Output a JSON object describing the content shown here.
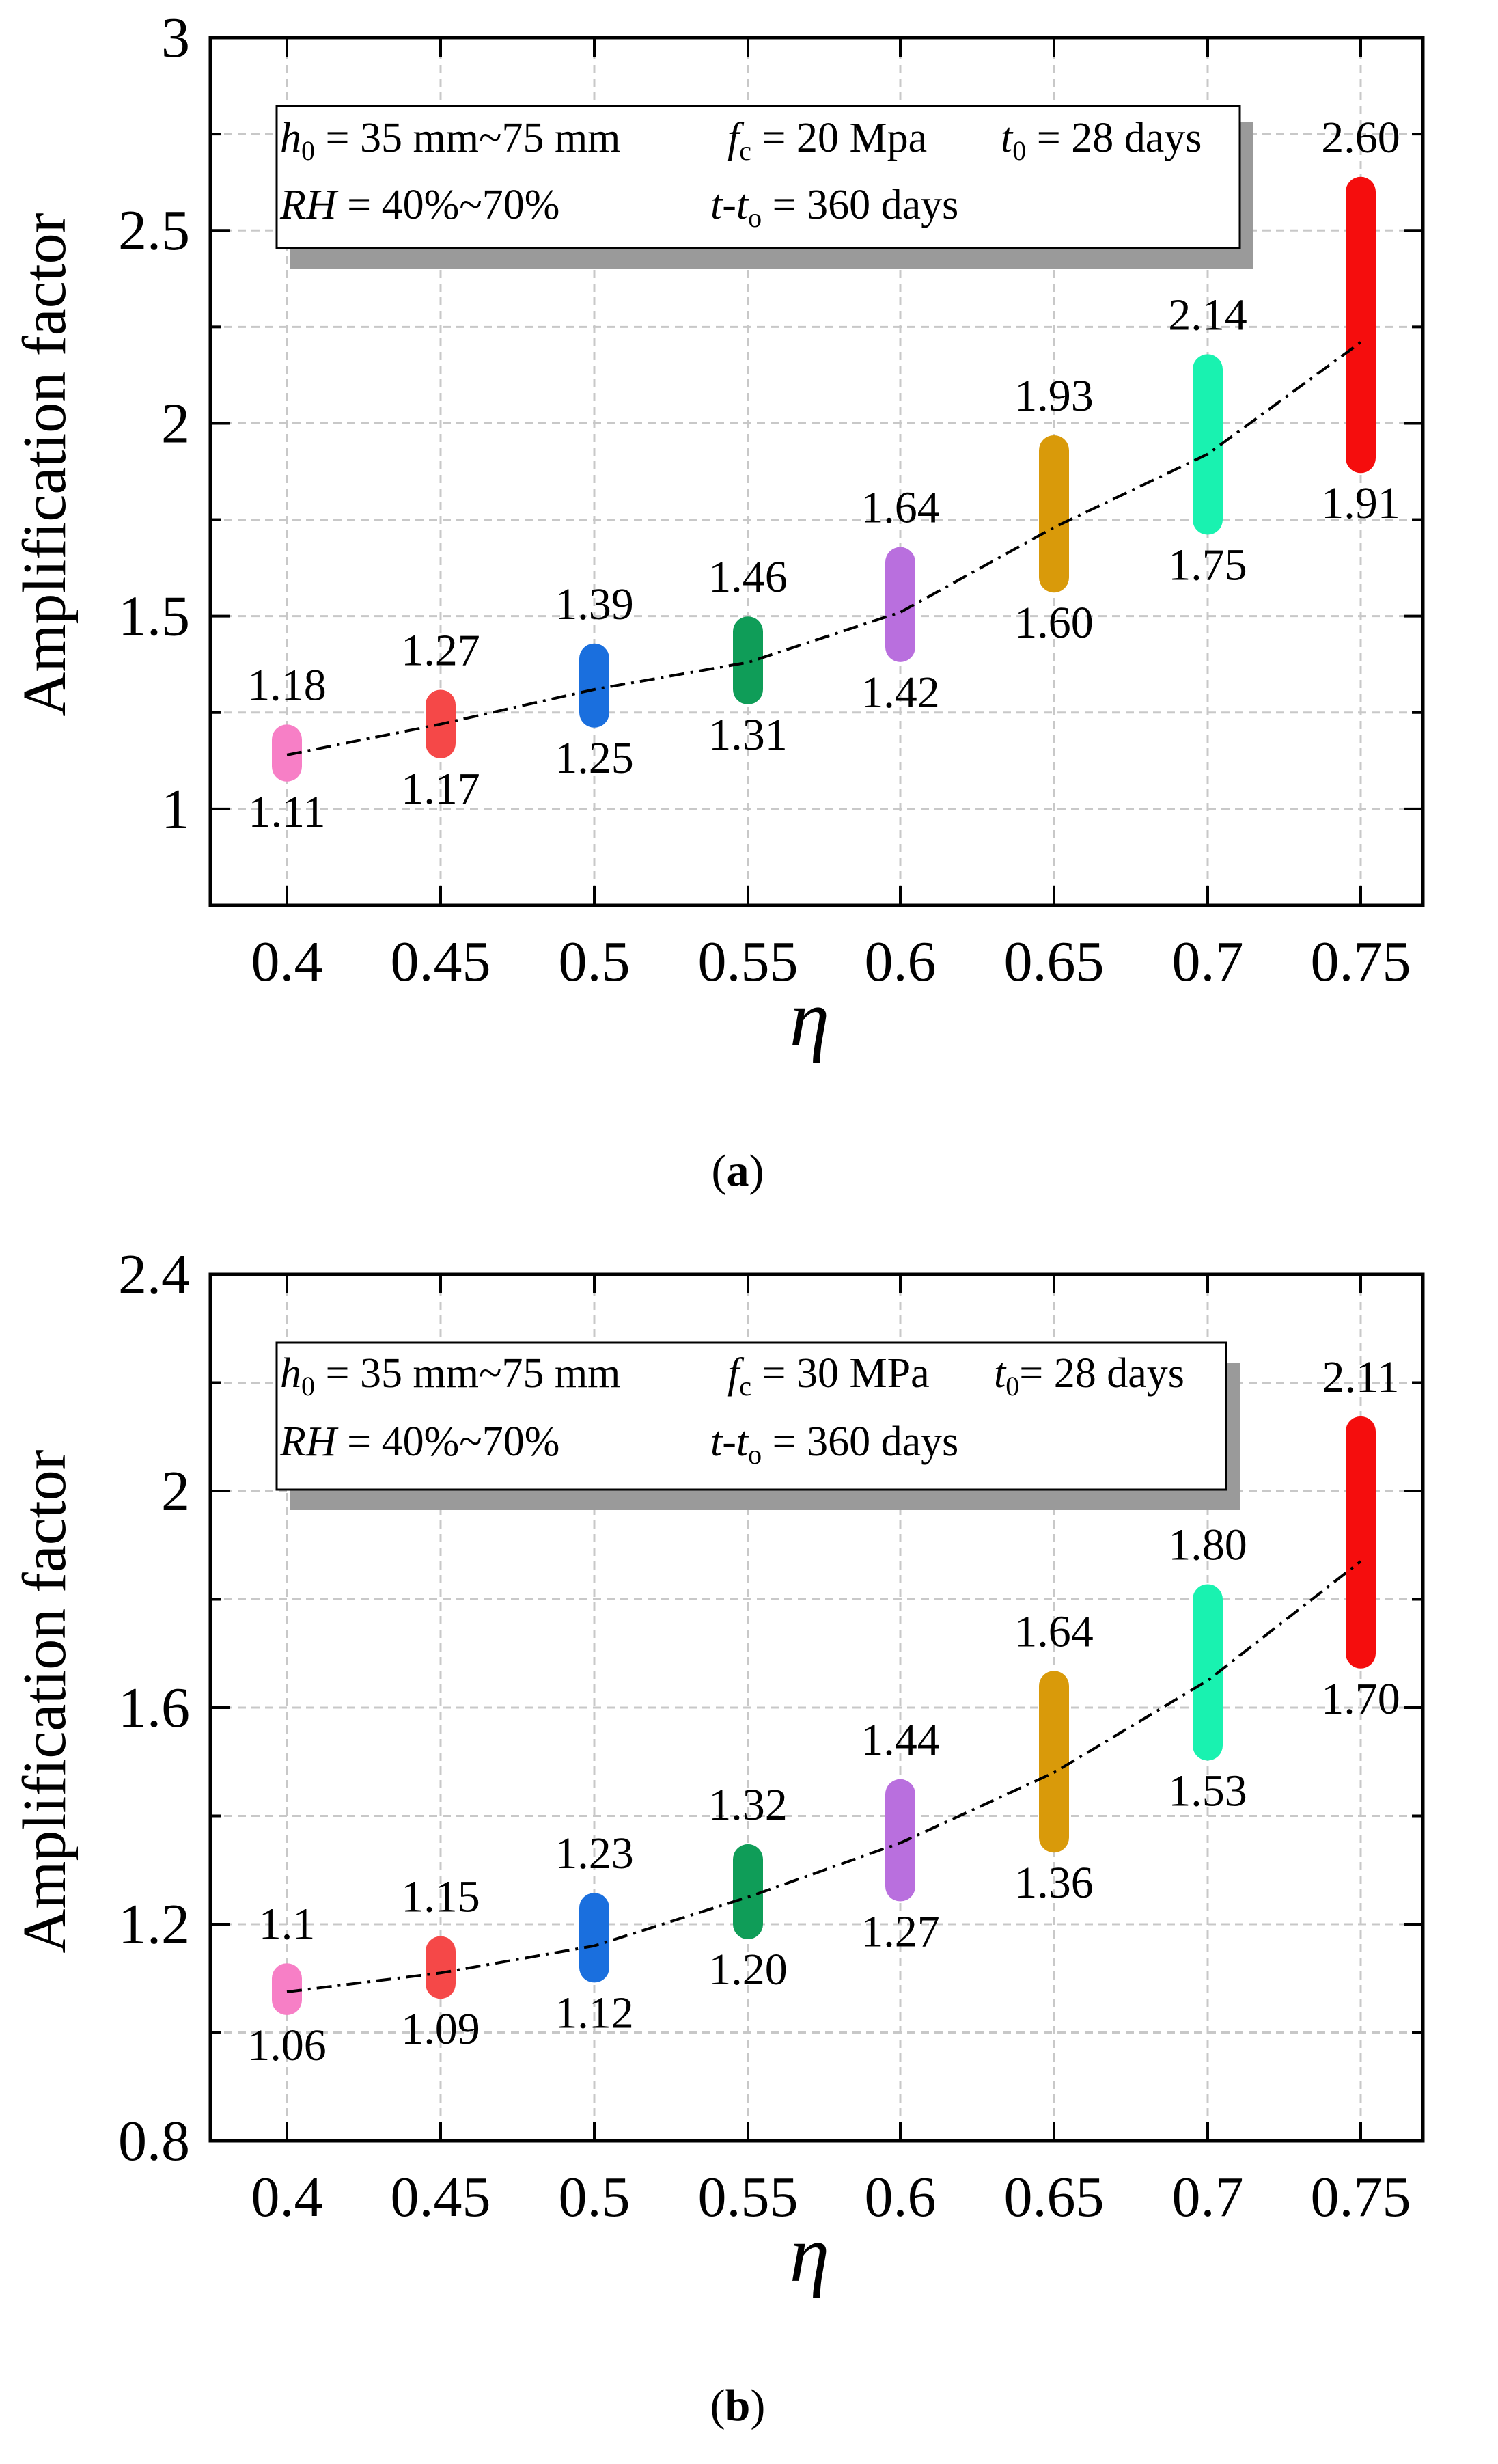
{
  "chart_data": [
    {
      "type": "range",
      "panel_label": "(a)",
      "panel_letter": "a",
      "xlabel": "η",
      "ylabel": "Amplification factor",
      "categories": [
        "0.4",
        "0.45",
        "0.5",
        "0.55",
        "0.6",
        "0.65",
        "0.7",
        "0.75"
      ],
      "ylim": [
        0.75,
        3
      ],
      "yticks": [
        1,
        1.5,
        2,
        2.5,
        3
      ],
      "ytick_labels": [
        "1",
        "1.5",
        "2",
        "2.5",
        "3"
      ],
      "grid": true,
      "upper": [
        1.18,
        1.27,
        1.39,
        1.46,
        1.64,
        1.93,
        2.14,
        2.6
      ],
      "lower": [
        1.11,
        1.17,
        1.25,
        1.31,
        1.42,
        1.6,
        1.75,
        1.91
      ],
      "upper_labels": [
        "1.18",
        "1.27",
        "1.39",
        "1.46",
        "1.64",
        "1.93",
        "2.14",
        "2.60"
      ],
      "lower_labels": [
        "1.11",
        "1.17",
        "1.25",
        "1.31",
        "1.42",
        "1.60",
        "1.75",
        "1.91"
      ],
      "mean_line": [
        1.14,
        1.22,
        1.31,
        1.38,
        1.51,
        1.73,
        1.92,
        2.21
      ],
      "colors": [
        "#f77fc6",
        "#f54848",
        "#1a6fde",
        "#0f9d58",
        "#b96fde",
        "#d99a0a",
        "#19f2b0",
        "#f50d0d"
      ],
      "annotation": {
        "line1": {
          "h": "h",
          "h_sub": "0",
          "h_val": " = 35 mm~75 mm",
          "f": "f",
          "f_sub": "c",
          "f_val": " = 20 Mpa",
          "t": "t",
          "t_sub": "0",
          "t_val": " = 28 days"
        },
        "line2": {
          "rh": "RH",
          "rh_val": " = 40%~70%",
          "tt_a": "t",
          "tt_dash": "-",
          "tt_b": "t",
          "tt_sub": "o",
          "tt_val": " = 360 days"
        }
      }
    },
    {
      "type": "range",
      "panel_label": "(b)",
      "panel_letter": "b",
      "xlabel": "η",
      "ylabel": "Amplification factor",
      "categories": [
        "0.4",
        "0.45",
        "0.5",
        "0.55",
        "0.6",
        "0.65",
        "0.7",
        "0.75"
      ],
      "ylim": [
        0.8,
        2.4
      ],
      "yticks": [
        0.8,
        1.2,
        1.6,
        2,
        2.4
      ],
      "ytick_labels": [
        "0.8",
        "1.2",
        "1.6",
        "2",
        "2.4"
      ],
      "grid": true,
      "upper": [
        1.1,
        1.15,
        1.23,
        1.32,
        1.44,
        1.64,
        1.8,
        2.11
      ],
      "lower": [
        1.06,
        1.09,
        1.12,
        1.2,
        1.27,
        1.36,
        1.53,
        1.7
      ],
      "upper_labels": [
        "1.1",
        "1.15",
        "1.23",
        "1.32",
        "1.44",
        "1.64",
        "1.80",
        "2.11"
      ],
      "lower_labels": [
        "1.06",
        "1.09",
        "1.12",
        "1.20",
        "1.27",
        "1.36",
        "1.53",
        "1.70"
      ],
      "mean_line": [
        1.075,
        1.11,
        1.16,
        1.25,
        1.35,
        1.48,
        1.65,
        1.87
      ],
      "colors": [
        "#f77fc6",
        "#f54848",
        "#1a6fde",
        "#0f9d58",
        "#b96fde",
        "#d99a0a",
        "#19f2b0",
        "#f50d0d"
      ],
      "annotation": {
        "line1": {
          "h": "h",
          "h_sub": "0",
          "h_val": " = 35 mm~75 mm",
          "f": "f",
          "f_sub": "c",
          "f_val": " = 30 MPa",
          "t": "t",
          "t_sub": "0",
          "t_val": "= 28 days"
        },
        "line2": {
          "rh": "RH",
          "rh_val": " = 40%~70%",
          "tt_a": "t",
          "tt_dash": "-",
          "tt_b": "t",
          "tt_sub": "o",
          "tt_val": " = 360 days"
        }
      }
    }
  ]
}
